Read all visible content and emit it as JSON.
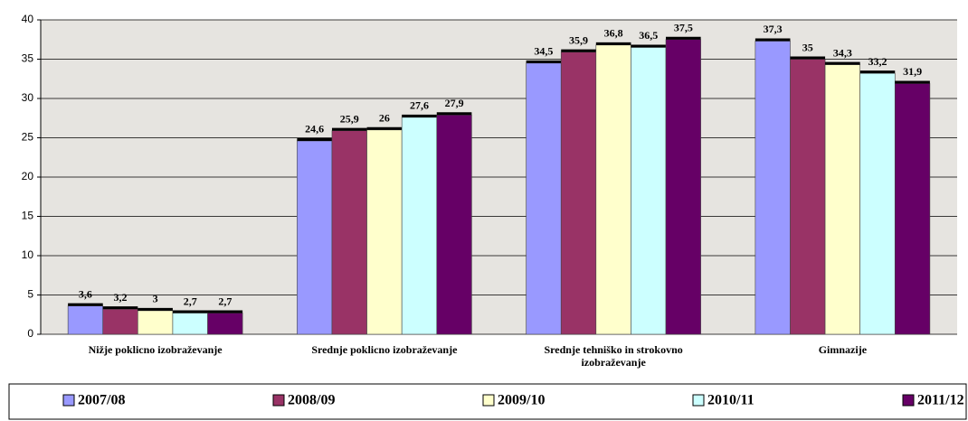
{
  "chart_data": {
    "type": "bar",
    "categories": [
      "Nižje poklicno izobraževanje",
      "Srednje poklicno izobraževanje",
      "Srednje tehniško in strokovno izobraževanje",
      "Gimnazije"
    ],
    "series": [
      {
        "name": "2007/08",
        "color": "#9999ff",
        "values": [
          3.6,
          24.6,
          34.5,
          37.3
        ],
        "value_labels": [
          "3,6",
          "24,6",
          "34,5",
          "37,3"
        ]
      },
      {
        "name": "2008/09",
        "color": "#993366",
        "values": [
          3.2,
          25.9,
          35.9,
          35
        ],
        "value_labels": [
          "3,2",
          "25,9",
          "35,9",
          "35"
        ]
      },
      {
        "name": "2009/10",
        "color": "#ffffcc",
        "values": [
          3,
          26,
          36.8,
          34.3
        ],
        "value_labels": [
          "3",
          "26",
          "36,8",
          "34,3"
        ]
      },
      {
        "name": "2010/11",
        "color": "#ccffff",
        "values": [
          2.7,
          27.6,
          36.5,
          33.2
        ],
        "value_labels": [
          "2,7",
          "27,6",
          "36,5",
          "33,2"
        ]
      },
      {
        "name": "2011/12",
        "color": "#660066",
        "values": [
          2.7,
          27.9,
          37.5,
          31.9
        ],
        "value_labels": [
          "2,7",
          "27,9",
          "37,5",
          "31,9"
        ]
      }
    ],
    "ylim": [
      0,
      40
    ],
    "yticks": [
      0,
      5,
      10,
      15,
      20,
      25,
      30,
      35,
      40
    ],
    "grid": true,
    "legend": "bottom"
  }
}
